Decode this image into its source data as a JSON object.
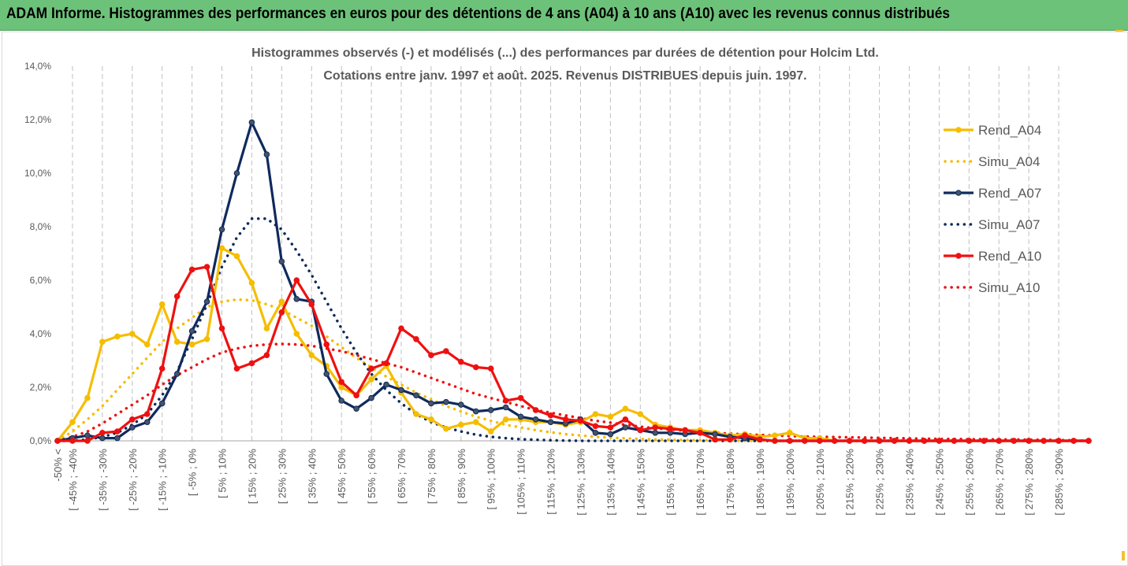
{
  "header": {
    "title": "ADAM Informe. Histogrammes des performances en euros pour des détentions de 4 ans (A04) à 10 ans (A10) avec les revenus connus distribués"
  },
  "chart_data": {
    "type": "line",
    "title": "Histogrammes observés (-) et modélisés (...) des performances par durées de détention pour Holcim Ltd.",
    "subtitle": "Cotations entre janv. 1997 et août. 2025. Revenus DISTRIBUES depuis juin. 1997.",
    "xlabel": "",
    "ylabel": "",
    "ylim": [
      0,
      14
    ],
    "y_ticks": [
      "0,0%",
      "2,0%",
      "4,0%",
      "6,0%",
      "8,0%",
      "10,0%",
      "12,0%",
      "14,0%"
    ],
    "grid": "vertical dashed",
    "legend_position": "right",
    "categories": [
      "-50% <",
      "[ -45% ; -40%",
      "[ -35% ; -30%",
      "[ -25% ; -20%",
      "[ -15% ; -10%",
      "[ -5% ; 0%",
      "[ 5% ; 10%",
      "[ 15% ; 20%",
      "[ 25% ; 30%",
      "[ 35% ; 40%",
      "[ 45% ; 50%",
      "[ 55% ; 60%",
      "[ 65% ; 70%",
      "[ 75% ; 80%",
      "[ 85% ; 90%",
      "[ 95% ; 100%",
      "[ 105% ; 110%",
      "[ 115% ; 120%",
      "[ 125% ; 130%",
      "[ 135% ; 140%",
      "[ 145% ; 150%",
      "[ 155% ; 160%",
      "[ 165% ; 170%",
      "[ 175% ; 180%",
      "[ 185% ; 190%",
      "[ 195% ; 200%",
      "[ 205% ; 210%",
      "[ 215% ; 220%",
      "[ 225% ; 230%",
      "[ 235% ; 240%",
      "[ 245% ; 250%",
      "[ 255% ; 260%",
      "[ 265% ; 270%",
      "[ 275% ; 280%",
      "[ 285% ; 290%"
    ],
    "x": [
      -50,
      -45,
      -40,
      -35,
      -30,
      -25,
      -20,
      -15,
      -10,
      -5,
      0,
      5,
      10,
      15,
      20,
      25,
      30,
      35,
      40,
      45,
      50,
      55,
      60,
      65,
      70,
      75,
      80,
      85,
      90,
      95,
      100,
      105,
      110,
      115,
      120,
      125,
      130,
      135,
      140,
      145,
      150,
      155,
      160,
      165,
      170,
      175,
      180,
      185,
      190,
      195,
      200,
      205,
      210,
      215,
      220,
      225,
      230,
      235,
      240,
      245,
      250,
      255,
      260,
      265,
      270,
      275,
      280,
      285,
      290,
      295
    ],
    "series": [
      {
        "name": "Rend_A04",
        "color": "#f5bd00",
        "style": "solid",
        "markers": true,
        "values": [
          0.0,
          0.7,
          1.6,
          3.7,
          3.9,
          4.0,
          3.6,
          5.1,
          3.7,
          3.6,
          3.8,
          7.2,
          6.9,
          5.9,
          4.2,
          5.2,
          4.0,
          3.2,
          2.8,
          2.0,
          1.7,
          2.3,
          2.8,
          1.8,
          1.0,
          0.8,
          0.45,
          0.6,
          0.7,
          0.35,
          0.8,
          0.8,
          0.7,
          0.7,
          0.6,
          0.7,
          1.0,
          0.9,
          1.2,
          1.0,
          0.6,
          0.5,
          0.4,
          0.4,
          0.3,
          0.2,
          0.25,
          0.15,
          0.2,
          0.3,
          0.1,
          0.1,
          0.0,
          0.0,
          0.0,
          0.0,
          0.0,
          0.0,
          0.0,
          0.0,
          0.0,
          0.0,
          0.0,
          0.0,
          0.0,
          0.0,
          0.0,
          0.0,
          0.0,
          0.0
        ]
      },
      {
        "name": "Simu_A04",
        "color": "#f5bd00",
        "style": "dotted",
        "markers": false,
        "values": [
          0.0,
          0.35,
          0.8,
          1.3,
          1.9,
          2.5,
          3.1,
          3.7,
          4.2,
          4.6,
          5.0,
          5.2,
          5.28,
          5.25,
          5.1,
          4.9,
          4.6,
          4.3,
          3.9,
          3.5,
          3.1,
          2.75,
          2.4,
          2.1,
          1.8,
          1.55,
          1.3,
          1.1,
          0.9,
          0.75,
          0.6,
          0.5,
          0.4,
          0.32,
          0.25,
          0.2,
          0.15,
          0.12,
          0.09,
          0.07,
          0.05,
          0.04,
          0.03,
          0.02,
          0.015,
          0.01,
          0.0,
          0.0,
          0.0,
          0.0,
          0.0,
          0.0,
          0.0,
          0.0,
          0.0,
          0.0,
          0.0,
          0.0,
          0.0,
          0.0,
          0.0,
          0.0,
          0.0,
          0.0,
          0.0,
          0.0,
          0.0,
          0.0,
          0.0,
          0.0
        ]
      },
      {
        "name": "Rend_A07",
        "color": "#0f2a5c",
        "style": "solid",
        "markers": true,
        "values": [
          0.0,
          0.1,
          0.2,
          0.1,
          0.1,
          0.5,
          0.7,
          1.4,
          2.5,
          4.1,
          5.2,
          7.9,
          10.0,
          11.9,
          10.7,
          6.7,
          5.3,
          5.2,
          2.5,
          1.5,
          1.2,
          1.6,
          2.1,
          1.9,
          1.7,
          1.4,
          1.45,
          1.35,
          1.1,
          1.15,
          1.25,
          0.9,
          0.8,
          0.7,
          0.65,
          0.8,
          0.3,
          0.25,
          0.5,
          0.4,
          0.3,
          0.3,
          0.25,
          0.3,
          0.25,
          0.15,
          0.1,
          0.05,
          0.0,
          0.0,
          0.0,
          0.0,
          0.0,
          0.0,
          0.0,
          0.0,
          0.0,
          0.0,
          0.0,
          0.0,
          0.0,
          0.0,
          0.0,
          0.0,
          0.0,
          0.0,
          0.0,
          0.0,
          0.0,
          0.0
        ]
      },
      {
        "name": "Simu_A07",
        "color": "#0f2a5c",
        "style": "dotted",
        "markers": false,
        "values": [
          0.0,
          0.0,
          0.05,
          0.15,
          0.3,
          0.6,
          1.0,
          1.7,
          2.6,
          3.8,
          5.1,
          6.5,
          7.6,
          8.3,
          8.3,
          7.9,
          7.1,
          6.2,
          5.2,
          4.2,
          3.3,
          2.5,
          1.9,
          1.4,
          1.0,
          0.7,
          0.5,
          0.35,
          0.23,
          0.15,
          0.1,
          0.06,
          0.04,
          0.02,
          0.01,
          0.0,
          0.0,
          0.0,
          0.0,
          0.0,
          0.0,
          0.0,
          0.0,
          0.0,
          0.0,
          0.0,
          0.0,
          0.0,
          0.0,
          0.0,
          0.0,
          0.0,
          0.0,
          0.0,
          0.0,
          0.0,
          0.0,
          0.0,
          0.0,
          0.0,
          0.0,
          0.0,
          0.0,
          0.0,
          0.0,
          0.0,
          0.0,
          0.0,
          0.0,
          0.0
        ]
      },
      {
        "name": "Rend_A10",
        "color": "#ee1111",
        "style": "solid",
        "markers": true,
        "values": [
          0.0,
          0.0,
          0.0,
          0.3,
          0.35,
          0.8,
          1.0,
          2.7,
          5.4,
          6.4,
          6.5,
          4.2,
          2.7,
          2.9,
          3.2,
          4.8,
          6.0,
          5.1,
          3.6,
          2.2,
          1.7,
          2.7,
          2.9,
          4.2,
          3.8,
          3.2,
          3.35,
          2.95,
          2.75,
          2.7,
          1.5,
          1.6,
          1.15,
          0.95,
          0.8,
          0.75,
          0.55,
          0.5,
          0.8,
          0.4,
          0.5,
          0.45,
          0.4,
          0.3,
          0.05,
          0.05,
          0.2,
          0.05,
          0.0,
          0.0,
          0.0,
          0.0,
          0.0,
          0.0,
          0.0,
          0.0,
          0.0,
          0.0,
          0.0,
          0.0,
          0.0,
          0.0,
          0.0,
          0.0,
          0.0,
          0.0,
          0.0,
          0.0,
          0.0,
          0.0
        ]
      },
      {
        "name": "Simu_A10",
        "color": "#ee1111",
        "style": "dotted",
        "markers": false,
        "values": [
          0.0,
          0.15,
          0.35,
          0.65,
          1.0,
          1.35,
          1.7,
          2.1,
          2.45,
          2.75,
          3.05,
          3.3,
          3.45,
          3.55,
          3.6,
          3.62,
          3.6,
          3.55,
          3.45,
          3.35,
          3.2,
          3.05,
          2.9,
          2.75,
          2.55,
          2.35,
          2.15,
          1.95,
          1.75,
          1.6,
          1.45,
          1.3,
          1.15,
          1.05,
          0.95,
          0.85,
          0.75,
          0.68,
          0.6,
          0.53,
          0.47,
          0.42,
          0.38,
          0.34,
          0.3,
          0.27,
          0.24,
          0.22,
          0.2,
          0.18,
          0.16,
          0.15,
          0.14,
          0.13,
          0.12,
          0.11,
          0.1,
          0.09,
          0.08,
          0.07,
          0.07,
          0.06,
          0.06,
          0.05,
          0.05,
          0.04,
          0.04,
          0.03,
          0.02,
          0.0
        ]
      }
    ]
  }
}
